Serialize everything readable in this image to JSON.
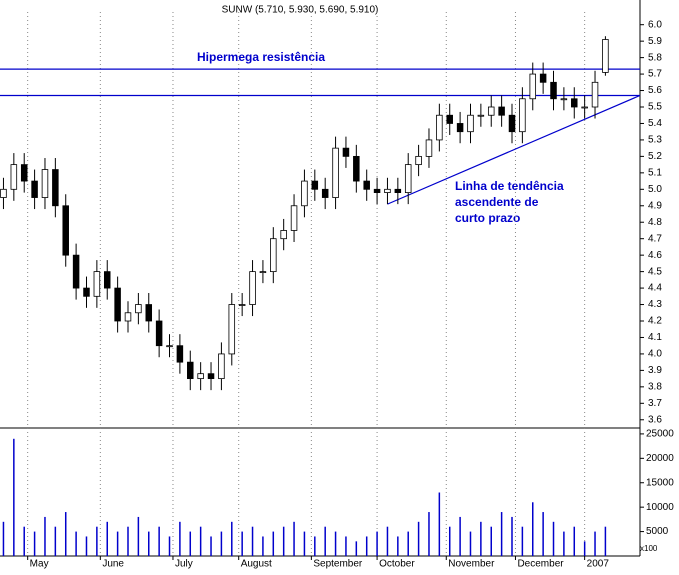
{
  "chart_data": {
    "type": "candlestick",
    "title": "SUNW (5.710, 5.930, 5.690, 5.910)",
    "x": [
      1,
      4,
      7,
      10,
      13,
      16,
      19,
      22,
      25,
      28,
      31,
      34,
      37,
      40,
      43,
      46,
      49,
      52,
      55,
      58,
      61,
      64,
      67,
      70,
      73,
      76,
      79,
      82,
      85,
      88,
      91,
      94,
      97,
      100,
      103,
      106,
      109,
      112,
      115,
      118,
      121,
      124,
      127,
      130,
      133,
      136,
      139,
      142,
      145,
      148,
      151,
      154,
      157,
      160,
      163,
      166,
      169,
      172,
      175
    ],
    "open": [
      4.95,
      5.0,
      5.15,
      5.05,
      4.95,
      5.12,
      4.9,
      4.6,
      4.4,
      4.35,
      4.5,
      4.4,
      4.2,
      4.25,
      4.3,
      4.2,
      4.05,
      4.05,
      3.95,
      3.85,
      3.88,
      3.85,
      4.0,
      4.3,
      4.3,
      4.5,
      4.5,
      4.7,
      4.75,
      4.9,
      5.05,
      5.0,
      4.95,
      5.25,
      5.2,
      5.05,
      5.0,
      4.98,
      5.0,
      4.98,
      5.15,
      5.2,
      5.3,
      5.45,
      5.4,
      5.35,
      5.45,
      5.45,
      5.5,
      5.45,
      5.35,
      5.55,
      5.7,
      5.65,
      5.55,
      5.55,
      5.5,
      5.5,
      5.71
    ],
    "high": [
      5.07,
      5.22,
      5.22,
      5.12,
      5.19,
      5.19,
      4.97,
      4.67,
      4.47,
      4.57,
      4.57,
      4.47,
      4.32,
      4.37,
      4.37,
      4.27,
      4.12,
      4.12,
      4.02,
      3.95,
      3.95,
      4.07,
      4.37,
      4.37,
      4.57,
      4.57,
      4.77,
      4.82,
      4.97,
      5.12,
      5.12,
      5.07,
      5.32,
      5.32,
      5.27,
      5.12,
      5.07,
      5.07,
      5.07,
      5.22,
      5.27,
      5.37,
      5.52,
      5.52,
      5.47,
      5.52,
      5.52,
      5.57,
      5.57,
      5.52,
      5.62,
      5.77,
      5.77,
      5.72,
      5.62,
      5.62,
      5.57,
      5.72,
      5.93
    ],
    "low": [
      4.88,
      4.93,
      4.98,
      4.88,
      4.88,
      4.83,
      4.53,
      4.33,
      4.28,
      4.28,
      4.33,
      4.13,
      4.13,
      4.18,
      4.13,
      3.98,
      3.98,
      3.88,
      3.78,
      3.78,
      3.78,
      3.78,
      3.93,
      4.23,
      4.23,
      4.43,
      4.43,
      4.63,
      4.68,
      4.83,
      4.93,
      4.88,
      4.88,
      5.13,
      4.98,
      4.93,
      4.91,
      4.91,
      4.91,
      4.91,
      5.08,
      5.13,
      5.23,
      5.33,
      5.28,
      5.28,
      5.38,
      5.38,
      5.38,
      5.28,
      5.28,
      5.48,
      5.58,
      5.48,
      5.48,
      5.43,
      5.43,
      5.43,
      5.69
    ],
    "close": [
      5.0,
      5.15,
      5.05,
      4.95,
      5.12,
      4.9,
      4.6,
      4.4,
      4.35,
      4.5,
      4.4,
      4.2,
      4.25,
      4.3,
      4.2,
      4.05,
      4.05,
      3.95,
      3.85,
      3.88,
      3.85,
      4.0,
      4.3,
      4.3,
      4.5,
      4.5,
      4.7,
      4.75,
      4.9,
      5.05,
      5.0,
      4.95,
      5.25,
      5.2,
      5.05,
      5.0,
      4.98,
      5.0,
      4.98,
      5.15,
      5.2,
      5.3,
      5.45,
      5.4,
      5.35,
      5.45,
      5.45,
      5.5,
      5.45,
      5.35,
      5.55,
      5.7,
      5.65,
      5.55,
      5.55,
      5.5,
      5.5,
      5.65,
      5.91
    ],
    "volume": [
      7000,
      24000,
      6000,
      5000,
      8000,
      6000,
      9000,
      5000,
      4000,
      6000,
      7000,
      5000,
      6000,
      8000,
      5000,
      6000,
      4000,
      7000,
      5000,
      6000,
      4000,
      5000,
      7000,
      5000,
      6000,
      4000,
      5000,
      6000,
      7000,
      5000,
      4000,
      6000,
      5000,
      4000,
      3000,
      4000,
      5000,
      6000,
      4000,
      5000,
      7000,
      9000,
      13000,
      6000,
      8000,
      5000,
      7000,
      6000,
      9000,
      8000,
      6000,
      11000,
      9000,
      7000,
      5000,
      6000,
      3000,
      5000,
      6000
    ],
    "xlim": [
      0,
      185
    ],
    "xticks": [
      {
        "value": 8,
        "label": "May"
      },
      {
        "value": 29,
        "label": "June"
      },
      {
        "value": 50,
        "label": "July"
      },
      {
        "value": 69,
        "label": "August"
      },
      {
        "value": 90,
        "label": "September"
      },
      {
        "value": 109,
        "label": "October"
      },
      {
        "value": 129,
        "label": "November"
      },
      {
        "value": 149,
        "label": "December"
      },
      {
        "value": 169,
        "label": "2007"
      }
    ],
    "ylim": [
      3.55,
      6.15
    ],
    "yticks": [
      {
        "value": 3.6,
        "label": "3.6"
      },
      3.7,
      3.8,
      3.9,
      {
        "value": 4,
        "label": "4.0"
      },
      4.1,
      4.2,
      4.3,
      4.4,
      4.5,
      4.6,
      4.7,
      4.8,
      4.9,
      {
        "value": 5,
        "label": "5.0"
      },
      5.1,
      5.2,
      5.3,
      5.4,
      5.5,
      5.6,
      5.7,
      5.8,
      5.9,
      {
        "value": 6,
        "label": "6.0"
      }
    ],
    "vol_ylim": [
      0,
      25800
    ],
    "vol_yticks": [
      5000,
      10000,
      15000,
      20000,
      25000
    ],
    "vol_unit": "x100",
    "up_color": "#ffffff",
    "down_color": "#000000",
    "volume_color": "#0000cc",
    "line_color": "#0000cc",
    "hlines": [
      5.73,
      5.57
    ],
    "trendline": {
      "x": [
        112,
        185
      ],
      "y": [
        4.91,
        5.57
      ]
    },
    "annotations": [
      "Hipermega resistência",
      "Linha de tendência",
      "ascendente de",
      "curto prazo"
    ]
  }
}
